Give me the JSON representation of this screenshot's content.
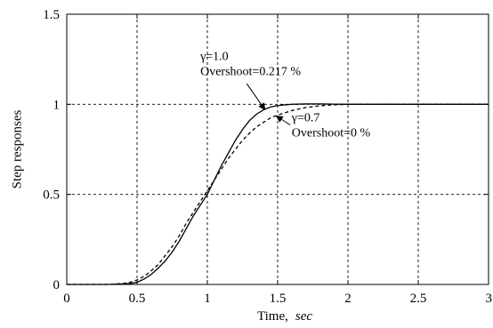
{
  "chart_data": {
    "type": "line",
    "title": "",
    "xlabel": "Time,",
    "xlabel_unit": "sec",
    "ylabel": "Step responses",
    "xlim": [
      0,
      3
    ],
    "ylim": [
      0,
      1.5
    ],
    "grid": true,
    "grid_style": "dashed",
    "x_ticks": [
      0,
      0.5,
      1,
      1.5,
      2,
      2.5,
      3
    ],
    "x_tick_labels": [
      "0",
      "0.5",
      "1",
      "1.5",
      "2",
      "2.5",
      "3"
    ],
    "y_ticks": [
      0,
      0.5,
      1,
      1.5
    ],
    "y_tick_labels": [
      "0",
      "0.5",
      "1",
      "1.5"
    ],
    "series": [
      {
        "style": "solid",
        "color": "#000000",
        "x": [
          0,
          0.3,
          0.45,
          0.5,
          0.55,
          0.6,
          0.65,
          0.7,
          0.75,
          0.8,
          0.85,
          0.9,
          0.95,
          1.0,
          1.05,
          1.1,
          1.15,
          1.2,
          1.25,
          1.3,
          1.35,
          1.4,
          1.45,
          1.5,
          1.55,
          1.6,
          1.7,
          1.8,
          1.9,
          2.0,
          2.5,
          3.0
        ],
        "y": [
          0,
          0,
          0.005,
          0.012,
          0.03,
          0.055,
          0.09,
          0.13,
          0.18,
          0.24,
          0.31,
          0.38,
          0.44,
          0.5,
          0.58,
          0.66,
          0.73,
          0.8,
          0.86,
          0.91,
          0.945,
          0.97,
          0.985,
          0.993,
          0.997,
          1.0,
          1.002,
          1.002,
          1.001,
          1.0,
          1.0,
          1.0
        ]
      },
      {
        "style": "dashed",
        "color": "#000000",
        "x": [
          0,
          0.3,
          0.4,
          0.45,
          0.5,
          0.55,
          0.6,
          0.65,
          0.7,
          0.75,
          0.8,
          0.85,
          0.9,
          0.95,
          1.0,
          1.05,
          1.1,
          1.15,
          1.2,
          1.25,
          1.3,
          1.35,
          1.4,
          1.45,
          1.5,
          1.6,
          1.7,
          1.8,
          1.9,
          2.0,
          2.5,
          3.0
        ],
        "y": [
          0,
          0,
          0.005,
          0.012,
          0.025,
          0.045,
          0.075,
          0.11,
          0.16,
          0.21,
          0.27,
          0.34,
          0.4,
          0.46,
          0.52,
          0.58,
          0.64,
          0.7,
          0.75,
          0.8,
          0.84,
          0.875,
          0.9,
          0.925,
          0.94,
          0.965,
          0.982,
          0.992,
          0.997,
          1.0,
          1.0,
          1.0
        ]
      }
    ],
    "annotations": [
      {
        "lines": [
          "γ=1.0",
          "Overshoot=0.217 %"
        ],
        "text_x": 0.95,
        "text_y": 1.245,
        "arrow_from": [
          1.28,
          1.115
        ],
        "arrow_to": [
          1.41,
          0.97
        ]
      },
      {
        "lines": [
          "γ=0.7",
          "Overshoot=0 %"
        ],
        "text_x": 1.6,
        "text_y": 0.905,
        "arrow_from": [
          1.59,
          0.885
        ],
        "arrow_to": [
          1.49,
          0.935
        ]
      }
    ]
  }
}
